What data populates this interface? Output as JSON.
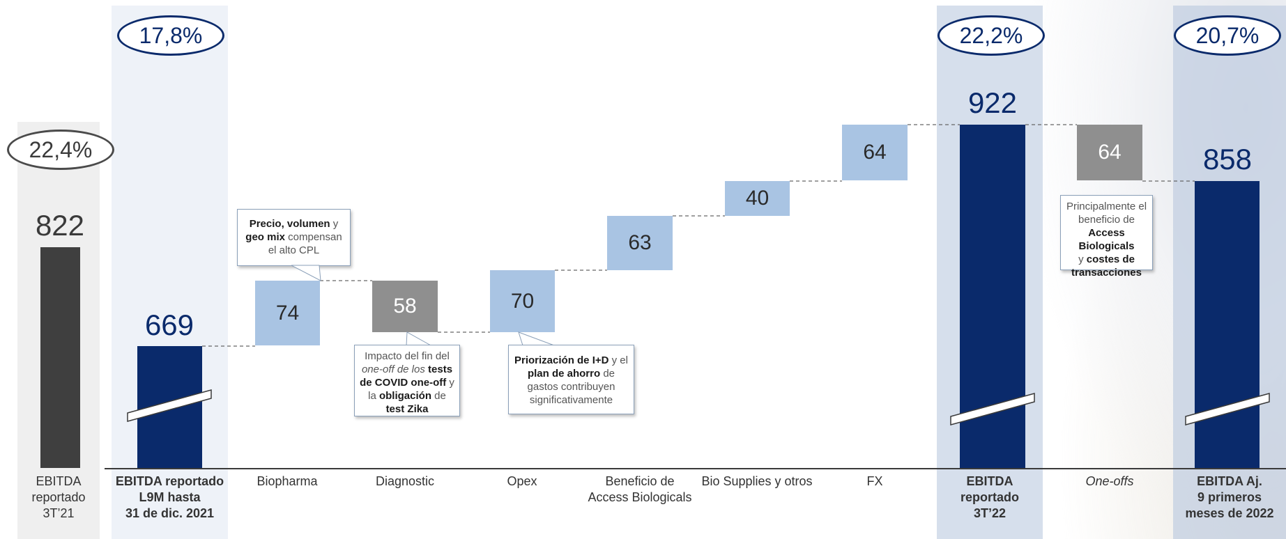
{
  "chart_data": {
    "type": "bar",
    "title": "",
    "xlabel": "",
    "ylabel": "",
    "categories": [
      "EBITDA reportado 3T'21",
      "EBITDA reportado L9M hasta 31 de dic. 2021",
      "Biopharma",
      "Diagnostic",
      "Opex",
      "Beneficio de Access Biologicals",
      "Bio Supplies y otros",
      "FX",
      "EBITDA reportado 3T'22",
      "One-offs",
      "EBITDA Aj. 9 primeros meses de 2022"
    ],
    "values": [
      822,
      669,
      74,
      -58,
      70,
      63,
      40,
      64,
      922,
      -64,
      858
    ],
    "margins": [
      "22,4%",
      "17,8%",
      "",
      "",
      "",
      "",
      "",
      "",
      "22,2%",
      "",
      "20,7%"
    ],
    "colors": {
      "total_dark": "#3f3f3f",
      "total_navy": "#0a2a6b",
      "increase": "#a9c4e3",
      "decrease": "#8f8f8f"
    }
  },
  "labels": {
    "v822": "822",
    "v669": "669",
    "v74": "74",
    "v58": "58",
    "v70": "70",
    "v63": "63",
    "v40": "40",
    "v64a": "64",
    "v922": "922",
    "v64b": "64",
    "v858": "858",
    "p224": "22,4%",
    "p178": "17,8%",
    "p222": "22,2%",
    "p207": "20,7%"
  },
  "categories": {
    "c0": [
      "EBITDA",
      "reportado",
      "3T’21"
    ],
    "c1": [
      "EBITDA reportado",
      "L9M hasta",
      "31 de dic. 2021"
    ],
    "c2": "Biopharma",
    "c3": "Diagnostic",
    "c4": "Opex",
    "c5": [
      "Beneficio de",
      "Access Biologicals"
    ],
    "c6": "Bio Supplies y otros",
    "c7": "FX",
    "c8": [
      "EBITDA",
      "reportado",
      "3T’22"
    ],
    "c9": "One-offs",
    "c10": [
      "EBITDA Aj.",
      "9 primeros",
      "meses de 2022"
    ]
  },
  "callouts": {
    "biopharma": {
      "b1": "Precio, volumen",
      "t1": " y ",
      "b2": "geo mix",
      "t2": " compensan",
      "t3": "el alto CPL"
    },
    "diagnostic": {
      "t1": "Impacto del fin del",
      "i1": "one-off de los ",
      "b1": "tests",
      "b2": "de COVID one-off",
      "t2": " y",
      "t3": "la ",
      "b3": "obligación",
      "t4": " de",
      "b4": "test Zika"
    },
    "opex": {
      "b1": "Priorización de I+D",
      "t1": "  y el",
      "b2": "plan de ahorro",
      "t2": " de",
      "t3": "gastos contribuyen",
      "t4": "significativamente"
    },
    "oneoffs": {
      "t1": "Principalmente el",
      "t2": "beneficio de",
      "b1": "Access Biologicals",
      "t3": "y ",
      "b2": "costes de",
      "b3": "transacciones"
    }
  }
}
